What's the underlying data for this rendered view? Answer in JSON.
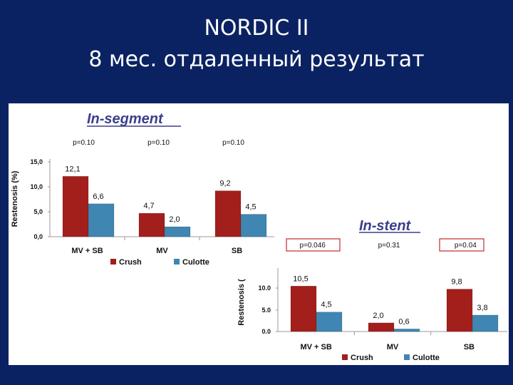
{
  "slide": {
    "title_line1": "NORDIC II",
    "title_line2": "8 мес. отдаленный результат"
  },
  "colors": {
    "background": "#0b2262",
    "crush": "#a21f1c",
    "culotte": "#3f86b2",
    "highlight_box": "#c42a2a"
  },
  "chart_data": [
    {
      "type": "bar",
      "title": "In-segment",
      "ylabel": "Restenosis (%)",
      "ylim": [
        0,
        15
      ],
      "yticks": [
        "0,0",
        "5,0",
        "10,0",
        "15,0"
      ],
      "categories": [
        "MV + SB",
        "MV",
        "SB"
      ],
      "p_values": [
        "p=0.10",
        "p=0.10",
        "p=0.10"
      ],
      "highlighted": [
        false,
        false,
        false
      ],
      "series": [
        {
          "name": "Crush",
          "values": [
            12.1,
            4.7,
            9.2
          ],
          "labels": [
            "12,1",
            "4,7",
            "9,2"
          ]
        },
        {
          "name": "Culotte",
          "values": [
            6.6,
            2.0,
            4.5
          ],
          "labels": [
            "6,6",
            "2,0",
            "4,5"
          ]
        }
      ],
      "legend": "bottom"
    },
    {
      "type": "bar",
      "title": "In-stent",
      "ylabel": "Restenosis (",
      "ylim": [
        0,
        12
      ],
      "yticks": [
        "0.0",
        "5.0",
        "10.0"
      ],
      "categories": [
        "MV + SB",
        "MV",
        "SB"
      ],
      "p_values": [
        "p=0.046",
        "p=0.31",
        "p=0.04"
      ],
      "highlighted": [
        true,
        false,
        true
      ],
      "series": [
        {
          "name": "Crush",
          "values": [
            10.5,
            2.0,
            9.8
          ],
          "labels": [
            "10,5",
            "2,0",
            "9,8"
          ]
        },
        {
          "name": "Culotte",
          "values": [
            4.5,
            0.6,
            3.8
          ],
          "labels": [
            "4,5",
            "0,6",
            "3,8"
          ]
        }
      ],
      "legend": "bottom"
    }
  ]
}
